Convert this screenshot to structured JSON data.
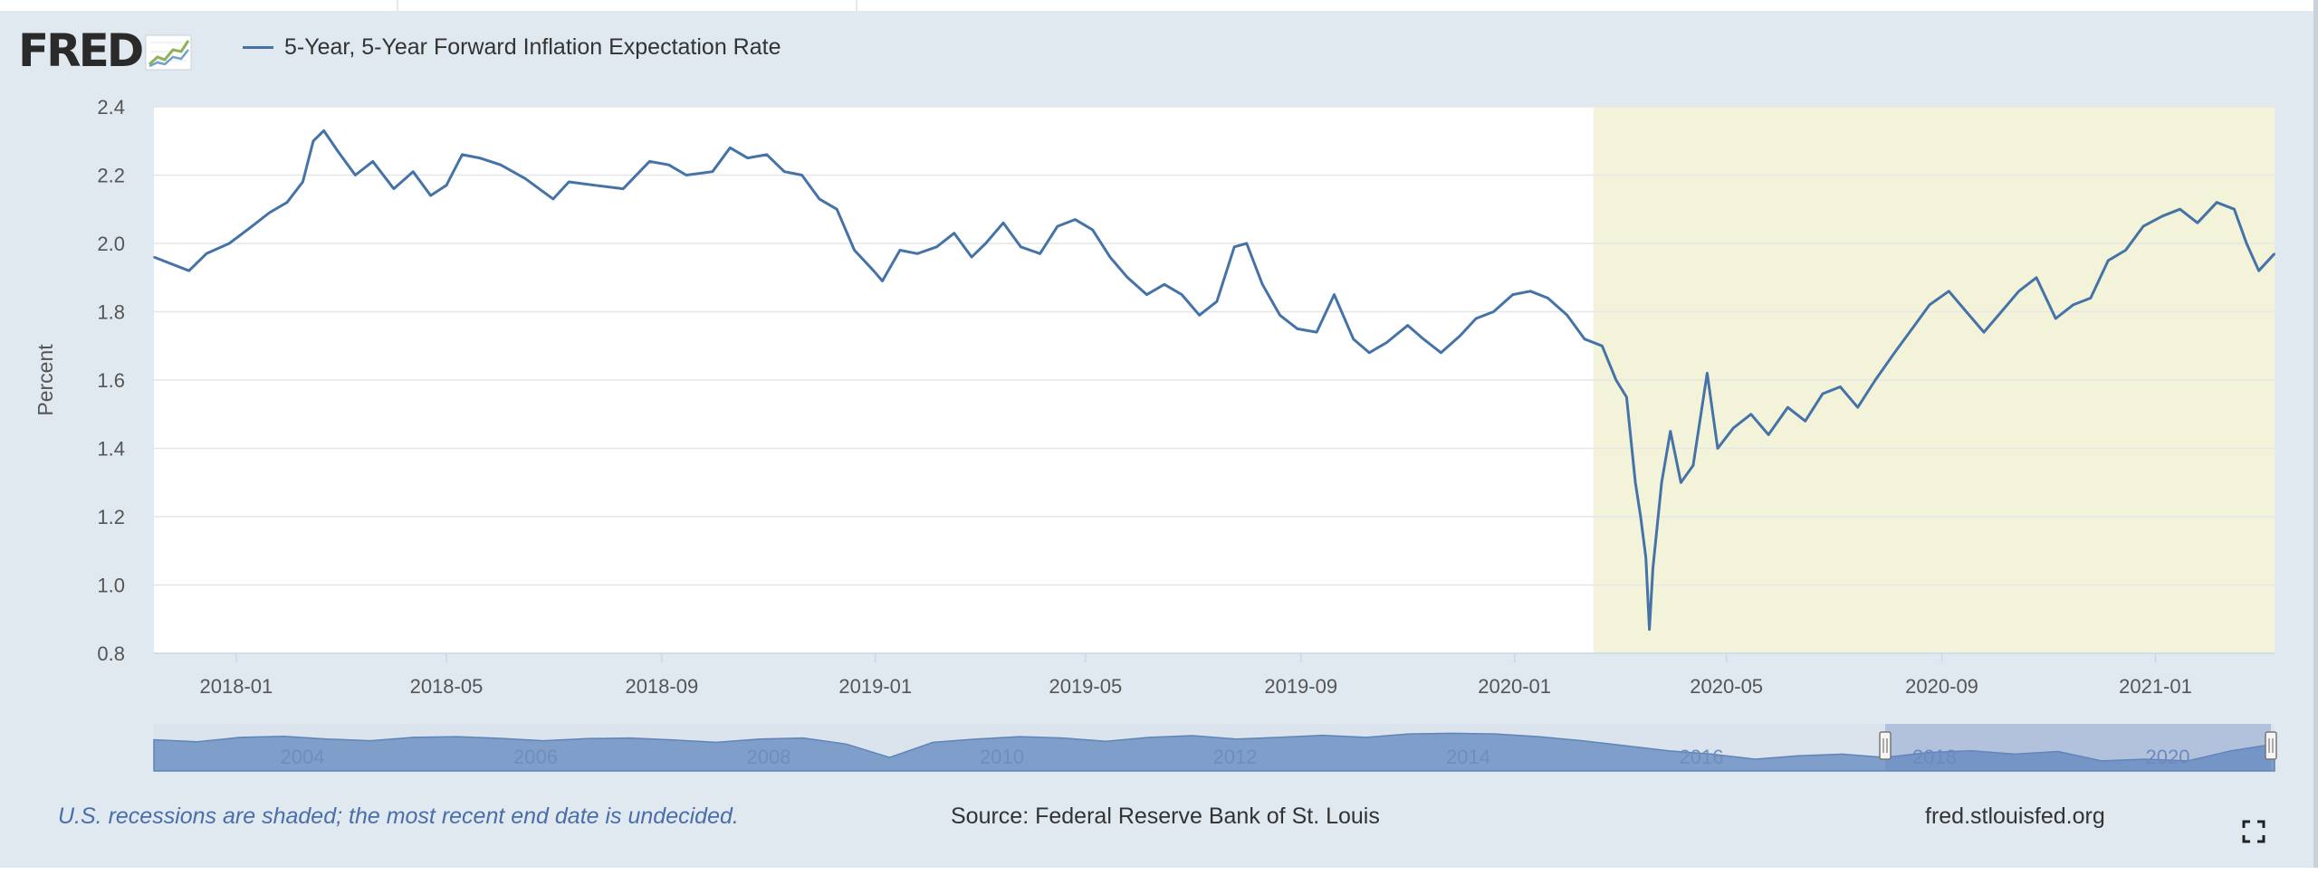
{
  "header": {
    "logo_text": "FRED",
    "logo_icon": "line-graph-icon",
    "legend_label": "5-Year, 5-Year Forward Inflation Expectation Rate"
  },
  "footer": {
    "recession_note": "U.S. recessions are shaded; the most recent end date is undecided.",
    "source": "Source: Federal Reserve Bank of St. Louis",
    "site": "fred.stlouisfed.org",
    "fullscreen_icon": "fullscreen-icon"
  },
  "colors": {
    "series": "#4572a7",
    "recession_shade": "#f3f3da",
    "background": "#e1e9f0",
    "plot_background": "#ffffff",
    "navigator_fill": "#7f9fca"
  },
  "chart_data": {
    "type": "line",
    "title": "",
    "xlabel": "",
    "ylabel": "Percent",
    "ylim": [
      0.8,
      2.4
    ],
    "yticks": [
      "0.8",
      "1.0",
      "1.2",
      "1.4",
      "1.6",
      "1.8",
      "2.0",
      "2.2",
      "2.4"
    ],
    "xlim": [
      "2017-11-15",
      "2021-03-10"
    ],
    "xticks": [
      {
        "date": "2018-01-01",
        "label": "2018-01"
      },
      {
        "date": "2018-05-01",
        "label": "2018-05"
      },
      {
        "date": "2018-09-01",
        "label": "2018-09"
      },
      {
        "date": "2019-01-01",
        "label": "2019-01"
      },
      {
        "date": "2019-05-01",
        "label": "2019-05"
      },
      {
        "date": "2019-09-01",
        "label": "2019-09"
      },
      {
        "date": "2020-01-01",
        "label": "2020-01"
      },
      {
        "date": "2020-05-01",
        "label": "2020-05"
      },
      {
        "date": "2020-09-01",
        "label": "2020-09"
      },
      {
        "date": "2021-01-01",
        "label": "2021-01"
      }
    ],
    "grid": true,
    "legend_position": "top-left",
    "recession_shading": [
      {
        "start": "2020-02-15",
        "end": "2021-03-10"
      }
    ],
    "series": [
      {
        "name": "5-Year, 5-Year Forward Inflation Expectation Rate",
        "points": [
          [
            "2017-11-15",
            1.96
          ],
          [
            "2017-11-25",
            1.94
          ],
          [
            "2017-12-05",
            1.92
          ],
          [
            "2017-12-15",
            1.97
          ],
          [
            "2017-12-28",
            2.0
          ],
          [
            "2018-01-10",
            2.05
          ],
          [
            "2018-01-20",
            2.09
          ],
          [
            "2018-01-30",
            2.12
          ],
          [
            "2018-02-08",
            2.18
          ],
          [
            "2018-02-14",
            2.3
          ],
          [
            "2018-02-20",
            2.33
          ],
          [
            "2018-02-28",
            2.27
          ],
          [
            "2018-03-10",
            2.2
          ],
          [
            "2018-03-20",
            2.24
          ],
          [
            "2018-04-01",
            2.16
          ],
          [
            "2018-04-12",
            2.21
          ],
          [
            "2018-04-22",
            2.14
          ],
          [
            "2018-05-01",
            2.17
          ],
          [
            "2018-05-10",
            2.26
          ],
          [
            "2018-05-20",
            2.25
          ],
          [
            "2018-06-01",
            2.23
          ],
          [
            "2018-06-15",
            2.19
          ],
          [
            "2018-07-01",
            2.13
          ],
          [
            "2018-07-10",
            2.18
          ],
          [
            "2018-07-25",
            2.17
          ],
          [
            "2018-08-10",
            2.16
          ],
          [
            "2018-08-25",
            2.24
          ],
          [
            "2018-09-05",
            2.23
          ],
          [
            "2018-09-15",
            2.2
          ],
          [
            "2018-09-30",
            2.21
          ],
          [
            "2018-10-10",
            2.28
          ],
          [
            "2018-10-20",
            2.25
          ],
          [
            "2018-10-31",
            2.26
          ],
          [
            "2018-11-10",
            2.21
          ],
          [
            "2018-11-20",
            2.2
          ],
          [
            "2018-11-30",
            2.13
          ],
          [
            "2018-12-10",
            2.1
          ],
          [
            "2018-12-20",
            1.98
          ],
          [
            "2018-12-31",
            1.92
          ],
          [
            "2019-01-05",
            1.89
          ],
          [
            "2019-01-15",
            1.98
          ],
          [
            "2019-01-25",
            1.97
          ],
          [
            "2019-02-05",
            1.99
          ],
          [
            "2019-02-15",
            2.03
          ],
          [
            "2019-02-25",
            1.96
          ],
          [
            "2019-03-05",
            2.0
          ],
          [
            "2019-03-15",
            2.06
          ],
          [
            "2019-03-25",
            1.99
          ],
          [
            "2019-04-05",
            1.97
          ],
          [
            "2019-04-15",
            2.05
          ],
          [
            "2019-04-25",
            2.07
          ],
          [
            "2019-05-05",
            2.04
          ],
          [
            "2019-05-15",
            1.96
          ],
          [
            "2019-05-25",
            1.9
          ],
          [
            "2019-06-05",
            1.85
          ],
          [
            "2019-06-15",
            1.88
          ],
          [
            "2019-06-25",
            1.85
          ],
          [
            "2019-07-05",
            1.79
          ],
          [
            "2019-07-15",
            1.83
          ],
          [
            "2019-07-25",
            1.99
          ],
          [
            "2019-08-01",
            2.0
          ],
          [
            "2019-08-10",
            1.88
          ],
          [
            "2019-08-20",
            1.79
          ],
          [
            "2019-08-30",
            1.75
          ],
          [
            "2019-09-10",
            1.74
          ],
          [
            "2019-09-20",
            1.85
          ],
          [
            "2019-10-01",
            1.72
          ],
          [
            "2019-10-10",
            1.68
          ],
          [
            "2019-10-20",
            1.71
          ],
          [
            "2019-11-01",
            1.76
          ],
          [
            "2019-11-10",
            1.72
          ],
          [
            "2019-11-20",
            1.68
          ],
          [
            "2019-12-01",
            1.73
          ],
          [
            "2019-12-10",
            1.78
          ],
          [
            "2019-12-20",
            1.8
          ],
          [
            "2019-12-31",
            1.85
          ],
          [
            "2020-01-10",
            1.86
          ],
          [
            "2020-01-20",
            1.84
          ],
          [
            "2020-01-31",
            1.79
          ],
          [
            "2020-02-10",
            1.72
          ],
          [
            "2020-02-20",
            1.7
          ],
          [
            "2020-02-28",
            1.6
          ],
          [
            "2020-03-05",
            1.55
          ],
          [
            "2020-03-10",
            1.3
          ],
          [
            "2020-03-13",
            1.2
          ],
          [
            "2020-03-16",
            1.08
          ],
          [
            "2020-03-18",
            0.87
          ],
          [
            "2020-03-20",
            1.05
          ],
          [
            "2020-03-25",
            1.3
          ],
          [
            "2020-03-30",
            1.45
          ],
          [
            "2020-04-05",
            1.3
          ],
          [
            "2020-04-12",
            1.35
          ],
          [
            "2020-04-20",
            1.62
          ],
          [
            "2020-04-26",
            1.4
          ],
          [
            "2020-05-05",
            1.46
          ],
          [
            "2020-05-15",
            1.5
          ],
          [
            "2020-05-25",
            1.44
          ],
          [
            "2020-06-05",
            1.52
          ],
          [
            "2020-06-15",
            1.48
          ],
          [
            "2020-06-25",
            1.56
          ],
          [
            "2020-07-05",
            1.58
          ],
          [
            "2020-07-15",
            1.52
          ],
          [
            "2020-07-25",
            1.6
          ],
          [
            "2020-08-05",
            1.68
          ],
          [
            "2020-08-15",
            1.75
          ],
          [
            "2020-08-25",
            1.82
          ],
          [
            "2020-09-05",
            1.86
          ],
          [
            "2020-09-15",
            1.8
          ],
          [
            "2020-09-25",
            1.74
          ],
          [
            "2020-10-05",
            1.8
          ],
          [
            "2020-10-15",
            1.86
          ],
          [
            "2020-10-25",
            1.9
          ],
          [
            "2020-11-05",
            1.78
          ],
          [
            "2020-11-15",
            1.82
          ],
          [
            "2020-11-25",
            1.84
          ],
          [
            "2020-12-05",
            1.95
          ],
          [
            "2020-12-15",
            1.98
          ],
          [
            "2020-12-25",
            2.05
          ],
          [
            "2021-01-05",
            2.08
          ],
          [
            "2021-01-15",
            2.1
          ],
          [
            "2021-01-25",
            2.06
          ],
          [
            "2021-02-05",
            2.12
          ],
          [
            "2021-02-15",
            2.1
          ],
          [
            "2021-02-22",
            2.0
          ],
          [
            "2021-03-01",
            1.92
          ],
          [
            "2021-03-10",
            1.97
          ]
        ]
      }
    ],
    "navigator": {
      "tick_labels": [
        "2004",
        "2006",
        "2008",
        "2010",
        "2012",
        "2014",
        "2016",
        "2018",
        "2020"
      ],
      "range_start": "2017-11-15",
      "range_end": "2021-03-10",
      "values": [
        2.53,
        2.47,
        2.6,
        2.63,
        2.55,
        2.5,
        2.6,
        2.62,
        2.57,
        2.5,
        2.56,
        2.58,
        2.52,
        2.45,
        2.55,
        2.58,
        2.4,
        2.0,
        2.45,
        2.55,
        2.62,
        2.58,
        2.48,
        2.6,
        2.65,
        2.55,
        2.6,
        2.66,
        2.6,
        2.7,
        2.72,
        2.7,
        2.62,
        2.5,
        2.35,
        2.2,
        2.1,
        1.95,
        2.05,
        2.1,
        2.0,
        2.15,
        2.2,
        2.1,
        2.18,
        1.9,
        1.95,
        1.9,
        2.2,
        2.4
      ]
    }
  }
}
